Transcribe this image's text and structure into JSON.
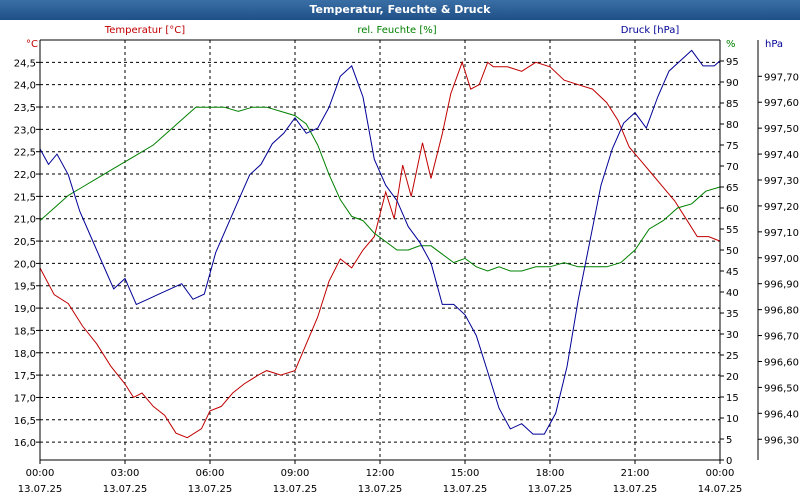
{
  "window": {
    "title": "Temperatur, Feuchte & Druck"
  },
  "colors": {
    "temperature": "#c00000",
    "humidity": "#008000",
    "pressure": "#000096",
    "grid": "#000000",
    "text": "#000000"
  },
  "chart_data": {
    "type": "line",
    "title": "Temperatur, Feuchte & Druck",
    "grid": true,
    "x_range": [
      "13.07.25 00:00",
      "14.07.25 00:00"
    ],
    "x_ticks": [
      {
        "time": "00:00",
        "date": "13.07.25",
        "h": 0
      },
      {
        "time": "03:00",
        "date": "13.07.25",
        "h": 3
      },
      {
        "time": "06:00",
        "date": "13.07.25",
        "h": 6
      },
      {
        "time": "09:00",
        "date": "13.07.25",
        "h": 9
      },
      {
        "time": "12:00",
        "date": "13.07.25",
        "h": 12
      },
      {
        "time": "15:00",
        "date": "13.07.25",
        "h": 15
      },
      {
        "time": "18:00",
        "date": "13.07.25",
        "h": 18
      },
      {
        "time": "21:00",
        "date": "13.07.25",
        "h": 21
      },
      {
        "time": "00:00",
        "date": "14.07.25",
        "h": 24
      }
    ],
    "axes": {
      "left": {
        "unit": "°C",
        "min": 15.6,
        "max": 25.0,
        "ticks": [
          "16,0",
          "16,5",
          "17,0",
          "17,5",
          "18,0",
          "18,5",
          "19,0",
          "19,5",
          "20,0",
          "20,5",
          "21,0",
          "21,5",
          "22,0",
          "22,5",
          "23,0",
          "23,5",
          "24,0",
          "24,5"
        ]
      },
      "mid": {
        "unit": "%",
        "min": 0,
        "max": 100,
        "ticks": [
          "0",
          "5",
          "10",
          "15",
          "20",
          "25",
          "30",
          "35",
          "40",
          "45",
          "50",
          "55",
          "60",
          "65",
          "70",
          "75",
          "80",
          "85",
          "90",
          "95"
        ]
      },
      "right": {
        "unit": "hPa",
        "min": 996.22,
        "max": 997.84,
        "ticks": [
          "996,30",
          "996,40",
          "996,50",
          "996,60",
          "996,70",
          "996,80",
          "996,90",
          "997,00",
          "997,10",
          "997,20",
          "997,30",
          "997,40",
          "997,50",
          "997,60",
          "997,70"
        ]
      }
    },
    "series": [
      {
        "name": "Temperatur [°C]",
        "axis": "left",
        "color": "#c00000",
        "x": [
          0,
          0.5,
          1,
          1.5,
          2,
          2.5,
          3,
          3.3,
          3.6,
          4,
          4.4,
          4.8,
          5.2,
          5.7,
          6,
          6.4,
          6.8,
          7.2,
          7.7,
          8,
          8.5,
          9,
          9.4,
          9.8,
          10.2,
          10.6,
          11,
          11.4,
          11.8,
          12.2,
          12.5,
          12.8,
          13.1,
          13.5,
          13.8,
          14.2,
          14.5,
          14.9,
          15.2,
          15.5,
          15.8,
          16,
          16.5,
          17,
          17.5,
          18,
          18.5,
          19,
          19.5,
          20,
          20.4,
          20.8,
          21.2,
          21.6,
          22,
          22.4,
          22.8,
          23.2,
          23.6,
          24
        ],
        "y": [
          19.9,
          19.3,
          19.1,
          18.6,
          18.2,
          17.7,
          17.3,
          17.0,
          17.1,
          16.8,
          16.6,
          16.2,
          16.1,
          16.3,
          16.7,
          16.8,
          17.1,
          17.3,
          17.5,
          17.6,
          17.5,
          17.6,
          18.2,
          18.8,
          19.6,
          20.1,
          19.9,
          20.3,
          20.6,
          21.6,
          21.0,
          22.2,
          21.5,
          22.7,
          21.9,
          22.9,
          23.8,
          24.5,
          23.9,
          24.0,
          24.5,
          24.4,
          24.4,
          24.3,
          24.5,
          24.4,
          24.1,
          24.0,
          23.9,
          23.6,
          23.2,
          22.6,
          22.3,
          22.0,
          21.7,
          21.4,
          21.0,
          20.6,
          20.6,
          20.5
        ]
      },
      {
        "name": "rel. Feuchte [%]",
        "axis": "mid",
        "color": "#008000",
        "x": [
          0,
          0.5,
          1,
          1.5,
          2,
          2.5,
          3,
          3.5,
          4,
          4.5,
          5,
          5.5,
          6,
          6.5,
          7,
          7.5,
          8,
          8.5,
          9,
          9.4,
          9.8,
          10.2,
          10.6,
          11,
          11.4,
          11.8,
          12.2,
          12.6,
          13,
          13.4,
          13.8,
          14.2,
          14.6,
          15,
          15.4,
          15.8,
          16.2,
          16.6,
          17,
          17.5,
          18,
          18.5,
          19,
          19.5,
          20,
          20.5,
          21,
          21.5,
          22,
          22.5,
          23,
          23.5,
          24
        ],
        "y": [
          57,
          60,
          63,
          65,
          67,
          69,
          71,
          73,
          75,
          78,
          81,
          84,
          84,
          84,
          83,
          84,
          84,
          83,
          82,
          80,
          75,
          68,
          62,
          58,
          57,
          54,
          52,
          50,
          50,
          51,
          51,
          49,
          47,
          48,
          46,
          45,
          46,
          45,
          45,
          46,
          46,
          47,
          46,
          46,
          46,
          47,
          50,
          55,
          57,
          60,
          61,
          64,
          65
        ]
      },
      {
        "name": "Druck [hPa]",
        "axis": "right",
        "color": "#000096",
        "x": [
          0,
          0.3,
          0.6,
          1,
          1.4,
          1.8,
          2.2,
          2.6,
          3,
          3.4,
          3.8,
          4.2,
          4.6,
          5,
          5.4,
          5.8,
          6.2,
          6.6,
          7,
          7.4,
          7.8,
          8.2,
          8.6,
          9,
          9.4,
          9.8,
          10.2,
          10.6,
          11,
          11.4,
          11.8,
          12.2,
          12.6,
          13,
          13.4,
          13.8,
          14.2,
          14.6,
          15,
          15.4,
          15.8,
          16.2,
          16.6,
          17,
          17.4,
          17.8,
          18.2,
          18.6,
          19,
          19.4,
          19.8,
          20.2,
          20.6,
          21,
          21.4,
          21.8,
          22.2,
          22.6,
          23,
          23.4,
          23.8,
          24
        ],
        "y": [
          997.42,
          997.36,
          997.4,
          997.32,
          997.18,
          997.08,
          996.98,
          996.88,
          996.92,
          996.82,
          996.84,
          996.86,
          996.88,
          996.9,
          996.84,
          996.86,
          997.02,
          997.12,
          997.22,
          997.32,
          997.36,
          997.44,
          997.48,
          997.54,
          997.48,
          997.5,
          997.58,
          997.7,
          997.74,
          997.62,
          997.38,
          997.28,
          997.22,
          997.12,
          997.06,
          996.98,
          996.82,
          996.82,
          996.78,
          996.7,
          996.56,
          996.42,
          996.34,
          996.36,
          996.32,
          996.32,
          996.4,
          996.58,
          996.84,
          997.06,
          997.28,
          997.42,
          997.52,
          997.56,
          997.5,
          997.62,
          997.72,
          997.76,
          997.8,
          997.74,
          997.74,
          997.76
        ]
      }
    ]
  }
}
